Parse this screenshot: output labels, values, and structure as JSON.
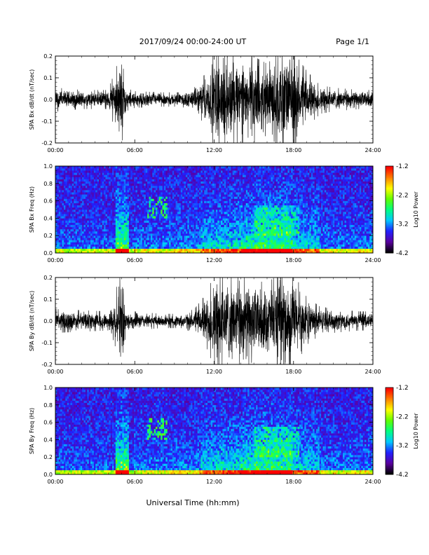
{
  "header": {
    "title": "2017/09/24  00:00-24:00 UT",
    "page": "Page 1/1"
  },
  "x_axis_label": "Universal Time (hh:mm)",
  "time_ticks": [
    "00:00",
    "06:00",
    "12:00",
    "18:00",
    "24:00"
  ],
  "colorbar": {
    "label": "Log10 Power",
    "ticks": [
      "-1.2",
      "-2.2",
      "-3.2",
      "-4.2"
    ],
    "range": [
      -4.2,
      -1.2
    ],
    "colors": [
      "#000000",
      "#5a00a0",
      "#2020ff",
      "#00c8ff",
      "#00ff80",
      "#60ff00",
      "#ffff00",
      "#ff8000",
      "#ff0000"
    ]
  },
  "chart_data": [
    {
      "type": "line",
      "ylabel": "SPA Bx dB/dt (nT/sec)",
      "ylim": [
        -0.2,
        0.2
      ],
      "yticks": [
        "0.2",
        "0.1",
        "0.0",
        "-0.1",
        "-0.2"
      ],
      "xlim": [
        0,
        24
      ],
      "envelope": {
        "hours": [
          0,
          2,
          4,
          5.0,
          5.1,
          5.3,
          6,
          8,
          9.5,
          10.5,
          11.5,
          12,
          13,
          14,
          15,
          16,
          17,
          18,
          19,
          20,
          21,
          22,
          23,
          24
        ],
        "amplitude": [
          0.05,
          0.04,
          0.04,
          0.2,
          0.2,
          0.05,
          0.035,
          0.03,
          0.03,
          0.05,
          0.12,
          0.2,
          0.2,
          0.18,
          0.18,
          0.15,
          0.2,
          0.2,
          0.12,
          0.06,
          0.05,
          0.045,
          0.04,
          0.04
        ]
      }
    },
    {
      "type": "heatmap",
      "ylabel": "SPA Bx Freq (Hz)",
      "ylim": [
        0.0,
        1.0
      ],
      "yticks": [
        "1.0",
        "0.8",
        "0.6",
        "0.4",
        "0.2",
        "0.0"
      ],
      "xlim": [
        0,
        24
      ],
      "zlim": [
        -4.2,
        -1.2
      ]
    },
    {
      "type": "line",
      "ylabel": "SPA By dB/dt (nT/sec)",
      "ylim": [
        -0.2,
        0.2
      ],
      "yticks": [
        "0.2",
        "0.1",
        "0.0",
        "-0.1",
        "-0.2"
      ],
      "xlim": [
        0,
        24
      ],
      "envelope": {
        "hours": [
          0,
          2,
          4,
          5.0,
          5.1,
          5.3,
          6,
          8,
          9.5,
          10.5,
          11.5,
          12,
          13,
          14,
          15,
          16,
          17,
          18,
          19,
          20,
          21,
          22,
          23,
          24
        ],
        "amplitude": [
          0.05,
          0.045,
          0.04,
          0.2,
          0.2,
          0.05,
          0.04,
          0.03,
          0.03,
          0.05,
          0.12,
          0.2,
          0.2,
          0.2,
          0.17,
          0.16,
          0.2,
          0.2,
          0.1,
          0.06,
          0.05,
          0.045,
          0.04,
          0.04
        ]
      }
    },
    {
      "type": "heatmap",
      "ylabel": "SPA By Freq (Hz)",
      "ylim": [
        0.0,
        1.0
      ],
      "yticks": [
        "1.0",
        "0.8",
        "0.6",
        "0.4",
        "0.2",
        "0.0"
      ],
      "xlim": [
        0,
        24
      ],
      "zlim": [
        -4.2,
        -1.2
      ]
    }
  ]
}
